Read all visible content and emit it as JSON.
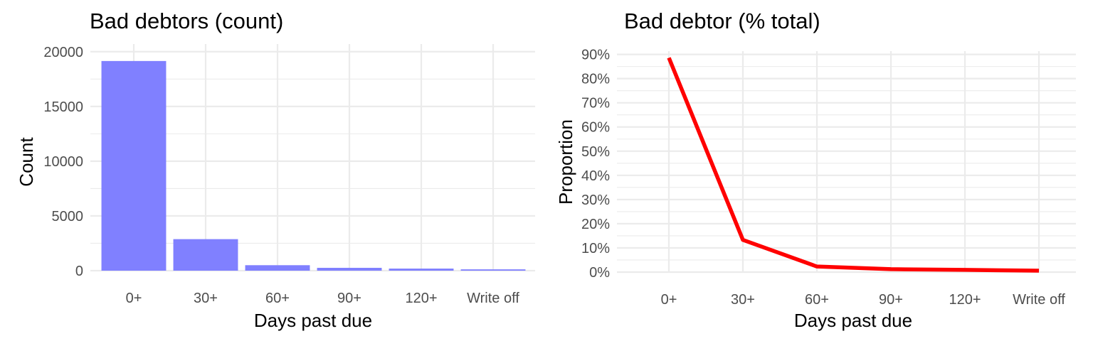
{
  "chart_data": [
    {
      "type": "bar",
      "title": "Bad debtors (count)",
      "xlabel": "Days past due",
      "ylabel": "Count",
      "categories": [
        "0+",
        "30+",
        "60+",
        "90+",
        "120+",
        "Write off"
      ],
      "values": [
        19150,
        2880,
        500,
        260,
        190,
        120
      ],
      "ylim": [
        0,
        20000
      ],
      "yticks": [
        0,
        5000,
        10000,
        15000,
        20000
      ],
      "ytick_labels": [
        "0",
        "5000",
        "10000",
        "15000",
        "20000"
      ],
      "grid": true,
      "bar_color": "#8080ff"
    },
    {
      "type": "line",
      "title": "Bad debtor (% total)",
      "xlabel": "Days past due",
      "ylabel": "Proportion",
      "categories": [
        "0+",
        "30+",
        "60+",
        "90+",
        "120+",
        "Write off"
      ],
      "values": [
        0.886,
        0.133,
        0.023,
        0.012,
        0.009,
        0.006
      ],
      "ylim": [
        0,
        0.9
      ],
      "yticks": [
        0,
        0.1,
        0.2,
        0.3,
        0.4,
        0.5,
        0.6,
        0.7,
        0.8,
        0.9
      ],
      "ytick_labels": [
        "0%",
        "10%",
        "20%",
        "30%",
        "40%",
        "50%",
        "60%",
        "70%",
        "80%",
        "90%"
      ],
      "grid": true,
      "line_color": "#ff0000"
    }
  ]
}
